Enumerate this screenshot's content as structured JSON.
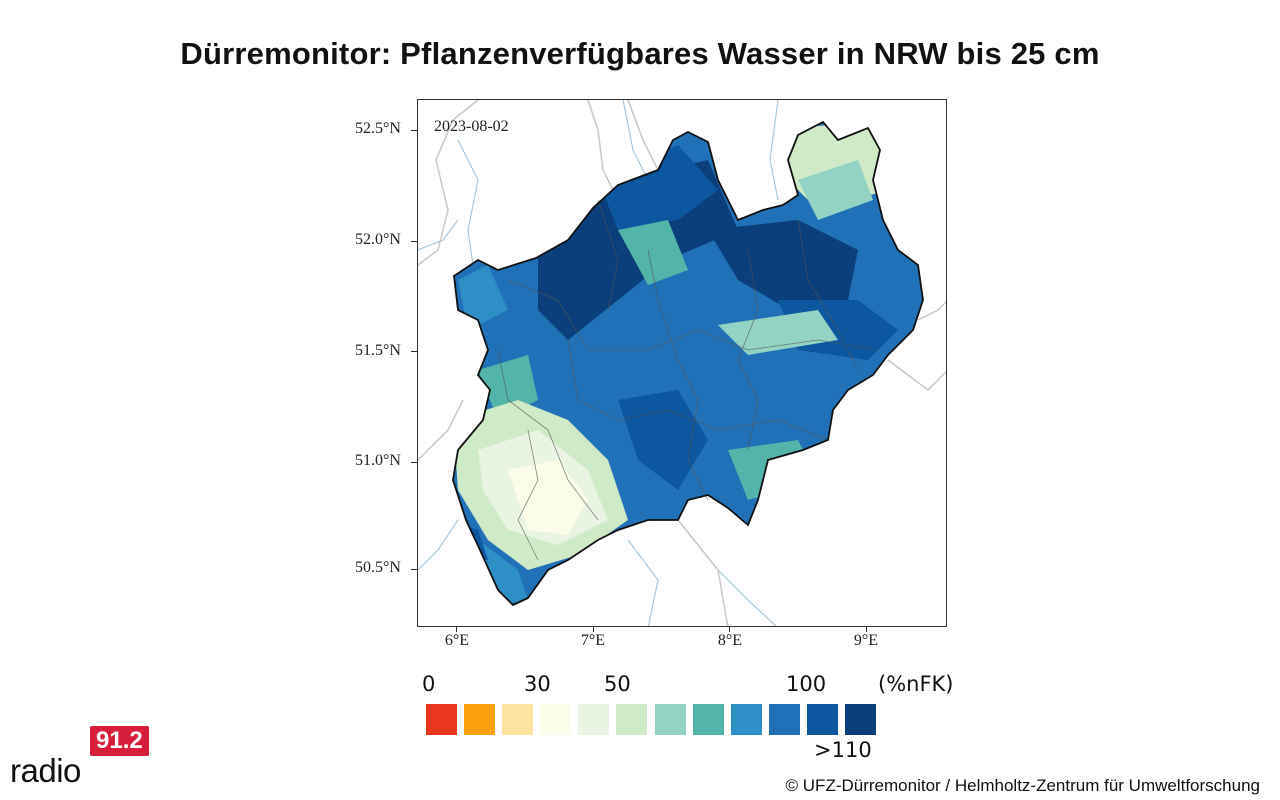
{
  "title": "Dürremonitor: Pflanzenverfügbares Wasser in NRW bis 25 cm",
  "map": {
    "date": "2023-08-02",
    "lat_labels": [
      "52.5°N",
      "52.0°N",
      "51.5°N",
      "51.0°N",
      "50.5°N"
    ],
    "lon_labels": [
      "6°E",
      "7°E",
      "8°E",
      "9°E"
    ],
    "region": "NRW",
    "colors": {
      "river": "#a9c8dd",
      "neighbor_border": "#c8c8c8",
      "state_border": "#111111",
      "district_border": "#555555"
    }
  },
  "legend": {
    "ticks": [
      "0",
      "30",
      "50",
      "100"
    ],
    "unit": "(%nFK)",
    "max_label": ">110",
    "colors": [
      "#e8371e",
      "#fca10b",
      "#fde3a0",
      "#fbfde8",
      "#e9f4e2",
      "#cfeac6",
      "#92d3c4",
      "#53b4aa",
      "#2e8fc7",
      "#2171b8",
      "#0d56a0",
      "#0a3f7b"
    ]
  },
  "branding": {
    "logo_badge": "91.2",
    "logo_text": "radio",
    "logo_color": "#d71e3a",
    "credit": "© UFZ-Dürremonitor / Helmholtz-Zentrum für Umweltforschung"
  }
}
